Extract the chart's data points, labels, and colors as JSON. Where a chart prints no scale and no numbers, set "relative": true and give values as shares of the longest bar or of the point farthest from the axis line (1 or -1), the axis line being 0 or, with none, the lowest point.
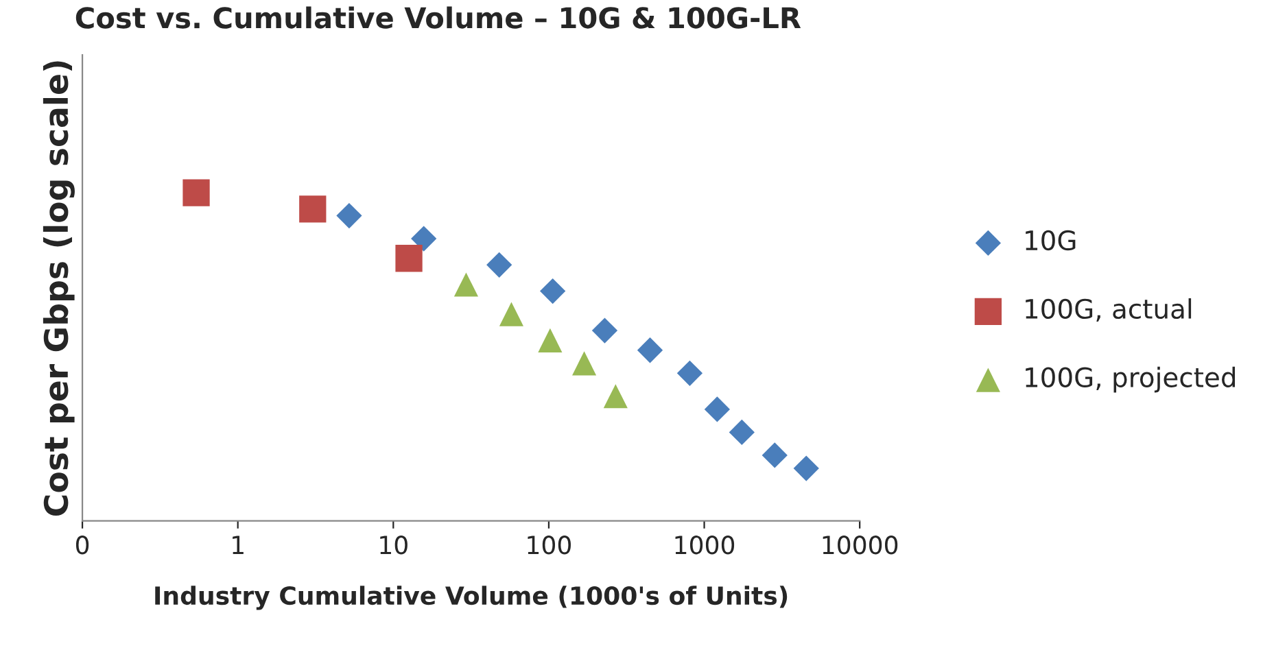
{
  "chart_data": {
    "type": "scatter",
    "title": "Cost vs. Cumulative Volume – 10G & 100G-LR",
    "xlabel": "Industry Cumulative Volume (1000's of Units)",
    "ylabel": "Cost per Gbps (log scale)",
    "relative": true,
    "log": "x",
    "xlim": [
      0.1,
      10000
    ],
    "xticks": [
      {
        "value": 0.1,
        "label": "0"
      },
      1,
      10,
      100,
      1000,
      10000
    ],
    "grid": false,
    "legend": "right",
    "series": [
      {
        "name": "10G",
        "color": "#4a7ebb",
        "marker": "diamond",
        "x": [
          5.2,
          15.7,
          48,
          106,
          229,
          448,
          807,
          1211,
          1745,
          2840,
          4530
        ],
        "values": [
          0.93,
          0.86,
          0.78,
          0.7,
          0.58,
          0.52,
          0.45,
          0.34,
          0.27,
          0.2,
          0.16
        ]
      },
      {
        "name": "100G, actual",
        "color": "#be4b48",
        "marker": "square",
        "x": [
          0.54,
          3.03,
          12.6
        ],
        "values": [
          1.0,
          0.95,
          0.8
        ]
      },
      {
        "name": "100G, projected",
        "color": "#98b954",
        "marker": "triangle",
        "x": [
          29.4,
          57.5,
          102,
          169,
          269
        ],
        "values": [
          0.72,
          0.63,
          0.55,
          0.48,
          0.38
        ]
      }
    ]
  }
}
